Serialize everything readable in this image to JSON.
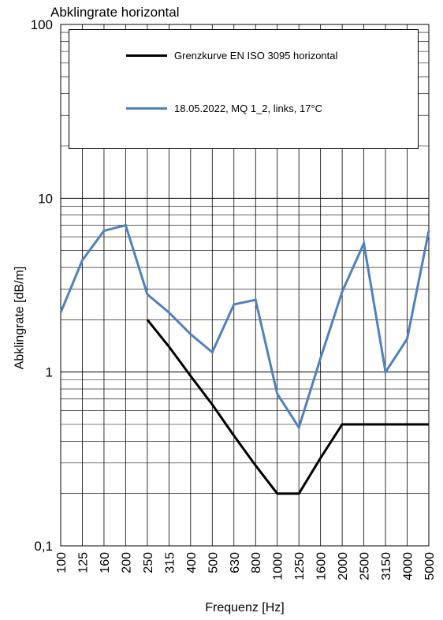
{
  "chart_data": {
    "type": "line",
    "title": "Abklingrate horizontal",
    "xlabel": "Frequenz [Hz]",
    "ylabel": "Abklingrate [dB/m]",
    "y_scale": "log",
    "ylim": [
      0.1,
      100
    ],
    "grid": true,
    "legend_position": "top",
    "categories": [
      "100",
      "125",
      "160",
      "200",
      "250",
      "315",
      "400",
      "500",
      "630",
      "800",
      "1000",
      "1250",
      "1600",
      "2000",
      "2500",
      "3150",
      "4000",
      "5000"
    ],
    "y_ticks": [
      {
        "value": 0.1,
        "label": "0,1"
      },
      {
        "value": 1,
        "label": "1"
      },
      {
        "value": 10,
        "label": "10"
      },
      {
        "value": 100,
        "label": "100"
      }
    ],
    "series": [
      {
        "name": "Grenzkurve EN ISO 3095 horizontal",
        "color": "#000000",
        "values": [
          null,
          null,
          null,
          null,
          2.0,
          1.4,
          0.95,
          0.65,
          0.43,
          0.29,
          0.2,
          0.2,
          0.32,
          0.5,
          0.5,
          0.5,
          0.5,
          0.5
        ]
      },
      {
        "name": "18.05.2022, MQ 1_2, links, 17°C",
        "color": "#4F81BD",
        "values": [
          2.2,
          4.4,
          6.5,
          7.0,
          2.8,
          2.2,
          1.65,
          1.3,
          2.45,
          2.6,
          0.75,
          0.48,
          1.2,
          2.9,
          5.5,
          1.0,
          1.55,
          6.5
        ]
      }
    ]
  }
}
